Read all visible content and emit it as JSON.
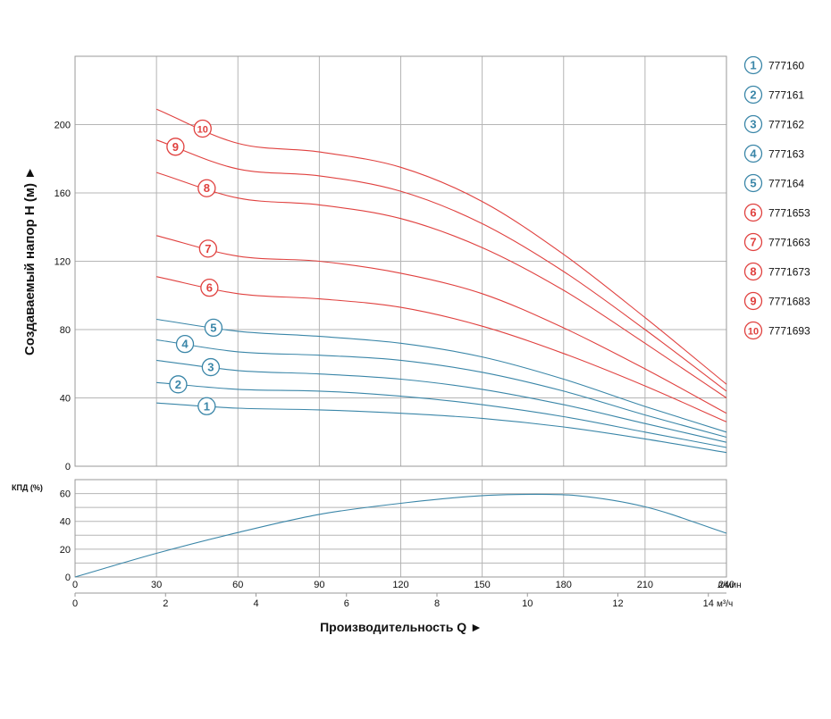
{
  "colors": {
    "blue": "#3a86a8",
    "red": "#e0413f",
    "grid": "#b5b5b5",
    "frame": "#999999",
    "text": "#111111"
  },
  "chart_data": [
    {
      "type": "line",
      "ylabel": "Создаваемый напор H (м) ►",
      "xlim": [
        0,
        240
      ],
      "ylim": [
        0,
        240
      ],
      "x_ticks": [
        0,
        30,
        60,
        90,
        120,
        150,
        180,
        210,
        240
      ],
      "y_ticks": [
        0,
        40,
        80,
        120,
        160,
        200
      ],
      "y_tick_labels": [
        "0",
        "40",
        "80",
        "120",
        "160",
        "200"
      ],
      "grid": true,
      "legend_position": "right",
      "series": [
        {
          "name": "777160",
          "number": "1",
          "color": "blue",
          "x": [
            30,
            60,
            90,
            120,
            150,
            180,
            210,
            240
          ],
          "y": [
            37,
            34,
            33,
            31,
            28,
            23,
            16,
            8
          ]
        },
        {
          "name": "777161",
          "number": "2",
          "color": "blue",
          "x": [
            30,
            60,
            90,
            120,
            150,
            180,
            210,
            240
          ],
          "y": [
            49,
            45,
            44,
            41,
            36,
            29,
            20,
            11
          ]
        },
        {
          "name": "777162",
          "number": "3",
          "color": "blue",
          "x": [
            30,
            60,
            90,
            120,
            150,
            180,
            210,
            240
          ],
          "y": [
            62,
            56,
            54,
            51,
            45,
            36,
            25,
            14
          ]
        },
        {
          "name": "777163",
          "number": "4",
          "color": "blue",
          "x": [
            30,
            60,
            90,
            120,
            150,
            180,
            210,
            240
          ],
          "y": [
            74,
            67,
            65,
            62,
            55,
            44,
            30,
            17
          ]
        },
        {
          "name": "777164",
          "number": "5",
          "color": "blue",
          "x": [
            30,
            60,
            90,
            120,
            150,
            180,
            210,
            240
          ],
          "y": [
            86,
            79,
            76,
            72,
            64,
            51,
            35,
            20
          ]
        },
        {
          "name": "7771653",
          "number": "6",
          "color": "red",
          "x": [
            30,
            60,
            90,
            120,
            150,
            180,
            210,
            240
          ],
          "y": [
            111,
            101,
            98,
            93,
            82,
            66,
            47,
            26
          ]
        },
        {
          "name": "7771663",
          "number": "7",
          "color": "red",
          "x": [
            30,
            60,
            90,
            120,
            150,
            180,
            210,
            240
          ],
          "y": [
            135,
            123,
            120,
            113,
            101,
            81,
            57,
            31
          ]
        },
        {
          "name": "7771673",
          "number": "8",
          "color": "red",
          "x": [
            30,
            60,
            90,
            120,
            150,
            180,
            210,
            240
          ],
          "y": [
            172,
            157,
            153,
            145,
            128,
            103,
            72,
            40
          ]
        },
        {
          "name": "7771683",
          "number": "9",
          "color": "red",
          "x": [
            30,
            60,
            90,
            120,
            150,
            180,
            210,
            240
          ],
          "y": [
            191,
            174,
            170,
            161,
            142,
            114,
            80,
            44
          ]
        },
        {
          "name": "7771693",
          "number": "10",
          "color": "red",
          "x": [
            30,
            60,
            90,
            120,
            150,
            180,
            210,
            240
          ],
          "y": [
            209,
            189,
            184,
            175,
            155,
            124,
            87,
            48
          ]
        }
      ]
    },
    {
      "type": "line",
      "ylabel": "КПД (%)",
      "xlim": [
        0,
        240
      ],
      "ylim": [
        0,
        70
      ],
      "y_ticks": [
        0,
        20,
        40,
        60
      ],
      "y_tick_labels": [
        "0",
        "20",
        "40",
        "60"
      ],
      "x_ticks": [
        0,
        30,
        60,
        90,
        120,
        150,
        180,
        210,
        240
      ],
      "x_tick_labels": [
        "0",
        "30",
        "60",
        "90",
        "120",
        "150",
        "180",
        "210",
        "240"
      ],
      "x_unit": "л/мин",
      "x2_ticks": [
        0,
        2,
        4,
        6,
        8,
        10,
        12,
        14
      ],
      "x2_unit": "м³/ч",
      "xlabel": "Производительность Q ►",
      "grid": true,
      "series": [
        {
          "x": [
            0,
            30,
            60,
            90,
            120,
            150,
            170,
            185,
            210,
            240
          ],
          "y": [
            0,
            17,
            32,
            45,
            53,
            58.5,
            59.5,
            58.5,
            50.5,
            31.5
          ]
        }
      ]
    }
  ]
}
